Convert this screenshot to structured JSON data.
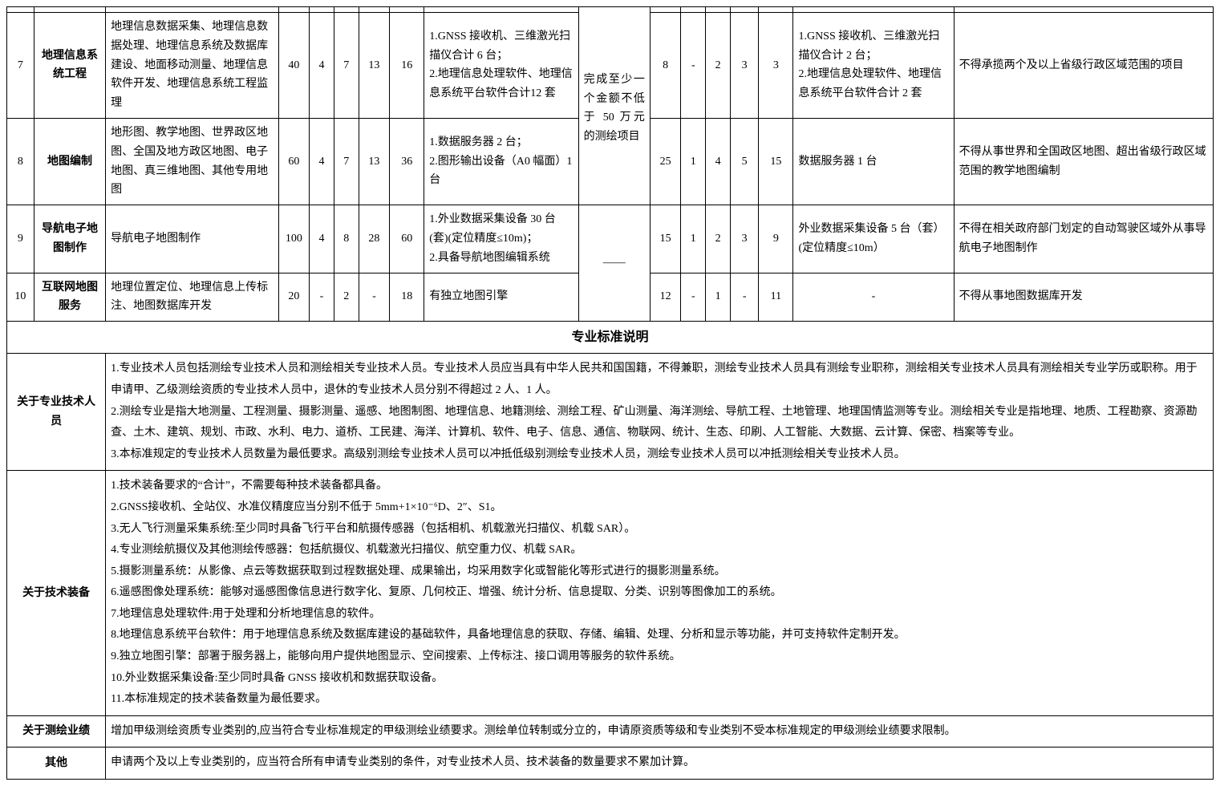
{
  "rows": [
    {
      "idx": "7",
      "category": "地理信息系统工程",
      "scope": "地理信息数据采集、地理信息数据处理、地理信息系统及数据库建设、地面移动测量、地理信息软件开发、地理信息系统工程监理",
      "a": [
        "40",
        "4",
        "7",
        "13",
        "16"
      ],
      "equipA": "1.GNSS 接收机、三维激光扫描仪合计 6 台；\n2.地理信息处理软件、地理信息系统平台软件合计12 套",
      "b": [
        "8",
        "-",
        "2",
        "3",
        "3"
      ],
      "equipB": "1.GNSS 接收机、三维激光扫描仪合计 2 台；\n2.地理信息处理软件、地理信息系统平台软件合计 2 套",
      "limit": "不得承揽两个及以上省级行政区域范围的项目"
    },
    {
      "idx": "8",
      "category": "地图编制",
      "scope": "地形图、教学地图、世界政区地图、全国及地方政区地图、电子地图、真三维地图、其他专用地图",
      "a": [
        "60",
        "4",
        "7",
        "13",
        "36"
      ],
      "equipA": "1.数据服务器 2 台；\n2.图形输出设备（A0 幅面）1 台",
      "b": [
        "25",
        "1",
        "4",
        "5",
        "15"
      ],
      "equipB": "数据服务器 1 台",
      "limit": "不得从事世界和全国政区地图、超出省级行政区域范围的教学地图编制"
    },
    {
      "idx": "9",
      "category": "导航电子地图制作",
      "scope": "导航电子地图制作",
      "a": [
        "100",
        "4",
        "8",
        "28",
        "60"
      ],
      "equipA": "1.外业数据采集设备 30 台(套)(定位精度≤10m)；\n2.具备导航地图编辑系统",
      "b": [
        "15",
        "1",
        "2",
        "3",
        "9"
      ],
      "equipB": "外业数据采集设备 5 台（套）(定位精度≤10m）",
      "limit": "不得在相关政府部门划定的自动驾驶区域外从事导航电子地图制作"
    },
    {
      "idx": "10",
      "category": "互联网地图服务",
      "scope": "地理位置定位、地理信息上传标注、地图数据库开发",
      "a": [
        "20",
        "-",
        "2",
        "-",
        "18"
      ],
      "equipA": "有独立地图引擎",
      "b": [
        "12",
        "-",
        "1",
        "-",
        "11"
      ],
      "equipB": "-",
      "limit": "不得从事地图数据库开发"
    }
  ],
  "midNoteTop": "完成至少一个金额不低于 50 万元的测绘项目",
  "midNoteBottom": "——",
  "sectionTitle": "专业标准说明",
  "desc": [
    {
      "label": "关于专业技术人员",
      "text": "1.专业技术人员包括测绘专业技术人员和测绘相关专业技术人员。专业技术人员应当具有中华人民共和国国籍，不得兼职，测绘专业技术人员具有测绘专业职称，测绘相关专业技术人员具有测绘相关专业学历或职称。用于申请甲、乙级测绘资质的专业技术人员中，退休的专业技术人员分别不得超过 2 人、1 人。\n2.测绘专业是指大地测量、工程测量、摄影测量、遥感、地图制图、地理信息、地籍测绘、测绘工程、矿山测量、海洋测绘、导航工程、土地管理、地理国情监测等专业。测绘相关专业是指地理、地质、工程勘察、资源勘查、土木、建筑、规划、市政、水利、电力、道桥、工民建、海洋、计算机、软件、电子、信息、通信、物联网、统计、生态、印刷、人工智能、大数据、云计算、保密、档案等专业。\n3.本标准规定的专业技术人员数量为最低要求。高级别测绘专业技术人员可以冲抵低级别测绘专业技术人员，测绘专业技术人员可以冲抵测绘相关专业技术人员。"
    },
    {
      "label": "关于技术装备",
      "text": "1.技术装备要求的“合计”，不需要每种技术装备都具备。\n2.GNSS接收机、全站仪、水准仪精度应当分别不低于 5mm+1×10⁻⁶D、2″、S1。\n3.无人飞行测量采集系统:至少同时具备飞行平台和航摄传感器（包括相机、机载激光扫描仪、机载 SAR）。\n4.专业测绘航摄仪及其他测绘传感器：包括航摄仪、机载激光扫描仪、航空重力仪、机载 SAR。\n5.摄影测量系统：从影像、点云等数据获取到过程数据处理、成果输出，均采用数字化或智能化等形式进行的摄影测量系统。\n6.遥感图像处理系统：能够对遥感图像信息进行数字化、复原、几何校正、增强、统计分析、信息提取、分类、识别等图像加工的系统。\n7.地理信息处理软件:用于处理和分析地理信息的软件。\n8.地理信息系统平台软件：用于地理信息系统及数据库建设的基础软件，具备地理信息的获取、存储、编辑、处理、分析和显示等功能，并可支持软件定制开发。\n9.独立地图引擎：部署于服务器上，能够向用户提供地图显示、空间搜索、上传标注、接口调用等服务的软件系统。\n10.外业数据采集设备:至少同时具备 GNSS 接收机和数据获取设备。\n11.本标准规定的技术装备数量为最低要求。"
    },
    {
      "label": "关于测绘业绩",
      "text": "增加甲级测绘资质专业类别的,应当符合专业标准规定的甲级测绘业绩要求。测绘单位转制或分立的，申请原资质等级和专业类别不受本标准规定的甲级测绘业绩要求限制。"
    },
    {
      "label": "其他",
      "text": "申请两个及以上专业类别的，应当符合所有申请专业类别的条件，对专业技术人员、技术装备的数量要求不累加计算。"
    }
  ]
}
